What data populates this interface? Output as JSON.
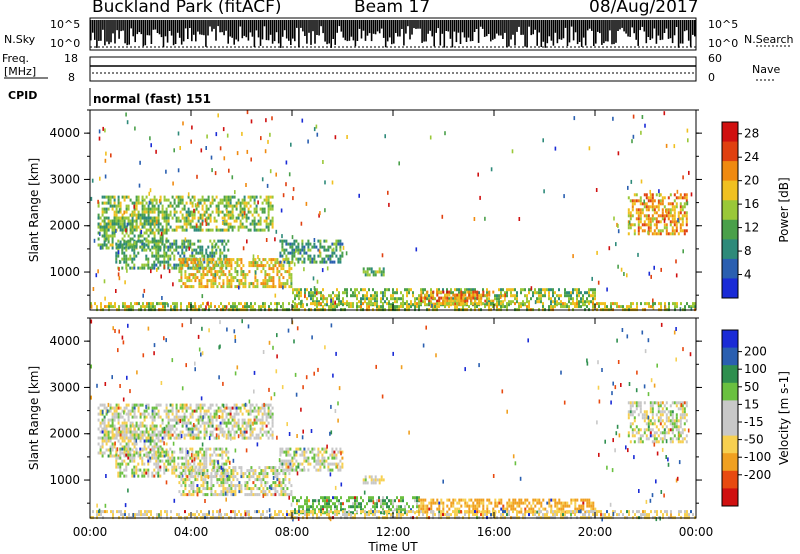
{
  "header": {
    "station": "Buckland Park (fitACF)",
    "beam": "Beam 17",
    "date": "08/Aug/2017"
  },
  "noise_panel": {
    "left_label": "N.Sky",
    "right_label": "N.Search",
    "tick_top": "10^5",
    "tick_bottom": "10^0"
  },
  "freq_panel": {
    "label_line1": "Freq.",
    "label_line2": "[MHz]",
    "left_ticks": [
      "18",
      "8"
    ],
    "right_ticks": [
      "60",
      "0"
    ],
    "right_label": "Nave"
  },
  "cpid": {
    "label": "CPID",
    "value": "normal (fast) 151"
  },
  "colors": {
    "power_scale": [
      "#1a2bd6",
      "#2a5fb0",
      "#2e8a7a",
      "#4aa04a",
      "#9ac838",
      "#f0c020",
      "#f08a10",
      "#e04010",
      "#d01010"
    ],
    "velocity_scale": [
      "#d01010",
      "#e84a10",
      "#f0a020",
      "#f7d050",
      "#c8c8c8",
      "#c8c8c8",
      "#6ac040",
      "#2f8f4f",
      "#2a5fb0",
      "#1a2bd6"
    ]
  },
  "chart_data": [
    {
      "type": "heatmap",
      "panel": "power",
      "title": "",
      "xlabel": "",
      "ylabel": "Slant Range [km]",
      "xlim": [
        "00:00",
        "24:00"
      ],
      "ylim": [
        180,
        4500
      ],
      "x_ticks": [
        "00:00",
        "04:00",
        "08:00",
        "12:00",
        "16:00",
        "20:00",
        "00:00"
      ],
      "y_ticks": [
        1000,
        2000,
        3000,
        4000
      ],
      "colorbar": {
        "label": "Power [dB]",
        "ticks": [
          "4",
          "8",
          "12",
          "16",
          "20",
          "24",
          "28"
        ],
        "range": [
          0,
          30
        ]
      },
      "regions": [
        {
          "t0": 0.3,
          "t1": 7.2,
          "r0": 1900,
          "r1": 2650,
          "level": 14
        },
        {
          "t0": 0.3,
          "t1": 3.0,
          "r0": 1500,
          "r1": 2200,
          "level": 12
        },
        {
          "t0": 1.0,
          "t1": 5.5,
          "r0": 1100,
          "r1": 1700,
          "level": 11
        },
        {
          "t0": 3.5,
          "t1": 8.0,
          "r0": 700,
          "r1": 1300,
          "level": 18
        },
        {
          "t0": 7.5,
          "t1": 10.0,
          "r0": 1200,
          "r1": 1700,
          "level": 10
        },
        {
          "t0": 8.0,
          "t1": 20.0,
          "r0": 300,
          "r1": 650,
          "level": 14
        },
        {
          "t0": 13.0,
          "t1": 16.0,
          "r0": 300,
          "r1": 600,
          "level": 22
        },
        {
          "t0": 0.0,
          "t1": 24.0,
          "r0": 200,
          "r1": 350,
          "level": 16
        },
        {
          "t0": 21.3,
          "t1": 23.6,
          "r0": 1800,
          "r1": 2700,
          "level": 20
        },
        {
          "t0": 10.8,
          "t1": 11.6,
          "r0": 950,
          "r1": 1100,
          "level": 12
        }
      ]
    },
    {
      "type": "heatmap",
      "panel": "velocity",
      "title": "",
      "xlabel": "Time UT",
      "ylabel": "Slant Range [km]",
      "xlim": [
        "00:00",
        "24:00"
      ],
      "ylim": [
        180,
        4500
      ],
      "x_ticks": [
        "00:00",
        "04:00",
        "08:00",
        "12:00",
        "16:00",
        "20:00",
        "00:00"
      ],
      "y_ticks": [
        1000,
        2000,
        3000,
        4000
      ],
      "colorbar": {
        "label": "Velocity [m s-1]",
        "ticks": [
          "200",
          "100",
          "50",
          "15",
          "-15",
          "-50",
          "-100",
          "-200"
        ],
        "range": [
          -250,
          250
        ]
      },
      "regions": [
        {
          "t0": 0.3,
          "t1": 7.2,
          "r0": 1900,
          "r1": 2650,
          "level": 0
        },
        {
          "t0": 0.3,
          "t1": 3.0,
          "r0": 1500,
          "r1": 2200,
          "level": 0
        },
        {
          "t0": 1.0,
          "t1": 5.5,
          "r0": 1100,
          "r1": 1700,
          "level": 0
        },
        {
          "t0": 3.5,
          "t1": 8.0,
          "r0": 700,
          "r1": 1300,
          "level": 0
        },
        {
          "t0": 7.5,
          "t1": 10.0,
          "r0": 1200,
          "r1": 1700,
          "level": 0
        },
        {
          "t0": 8.0,
          "t1": 13.0,
          "r0": 300,
          "r1": 650,
          "level": 40
        },
        {
          "t0": 13.0,
          "t1": 20.0,
          "r0": 300,
          "r1": 600,
          "level": -60
        },
        {
          "t0": 0.0,
          "t1": 24.0,
          "r0": 200,
          "r1": 350,
          "level": -20
        },
        {
          "t0": 21.3,
          "t1": 23.6,
          "r0": 1800,
          "r1": 2700,
          "level": 0
        },
        {
          "t0": 10.8,
          "t1": 11.6,
          "r0": 950,
          "r1": 1100,
          "level": 0
        }
      ]
    }
  ]
}
